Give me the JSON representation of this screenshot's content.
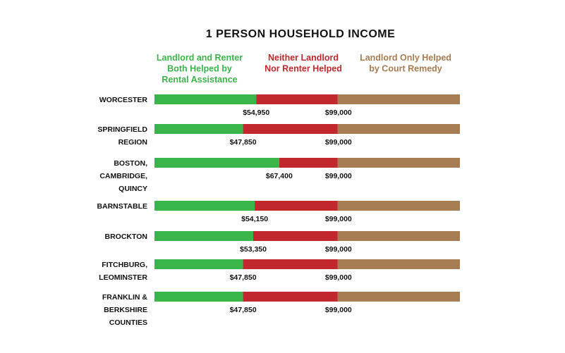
{
  "chart_data": {
    "type": "bar",
    "orientation": "horizontal",
    "stacked": true,
    "title": "1 PERSON HOUSEHOLD INCOME",
    "legend_placement": "top",
    "series": [
      {
        "key": "green",
        "name": "Landlord and Renter Both Helped by Rental Assistance",
        "color": "#3ab54a"
      },
      {
        "key": "red",
        "name": "Neither Landlord Nor Renter Helped",
        "color": "#c1272d"
      },
      {
        "key": "brown",
        "name": "Landlord Only Helped by Court Remedy",
        "color": "#a67c52"
      }
    ],
    "categories": [
      "WORCESTER",
      "SPRINGFIELD REGION",
      "BOSTON, CAMBRIDGE, QUINCY",
      "BARNSTABLE",
      "BROCKTON",
      "FITCHBURG, LEOMINSTER",
      "FRANKLIN & BERKSHIRE COUNTIES"
    ],
    "category_lines": [
      [
        "WORCESTER"
      ],
      [
        "SPRINGFIELD",
        "REGION"
      ],
      [
        "BOSTON,",
        "CAMBRIDGE,",
        "QUINCY"
      ],
      [
        "BARNSTABLE"
      ],
      [
        "BROCKTON"
      ],
      [
        "FITCHBURG,",
        "LEOMINSTER"
      ],
      [
        "FRANKLIN &",
        "BERKSHIRE",
        "COUNTIES"
      ]
    ],
    "thresholds_low": [
      54950,
      47850,
      67400,
      54150,
      53350,
      47850,
      47850
    ],
    "thresholds_high": [
      99000,
      99000,
      99000,
      99000,
      99000,
      99000,
      99000
    ],
    "labels_low": [
      "$54,950",
      "$47,850",
      "$67,400",
      "$54,150",
      "$53,350",
      "$47,850",
      "$47,850"
    ],
    "labels_high": [
      "$99,000",
      "$99,000",
      "$99,000",
      "$99,000",
      "$99,000",
      "$99,000",
      "$99,000"
    ],
    "xlim": [
      0,
      165000
    ],
    "grid": false
  }
}
